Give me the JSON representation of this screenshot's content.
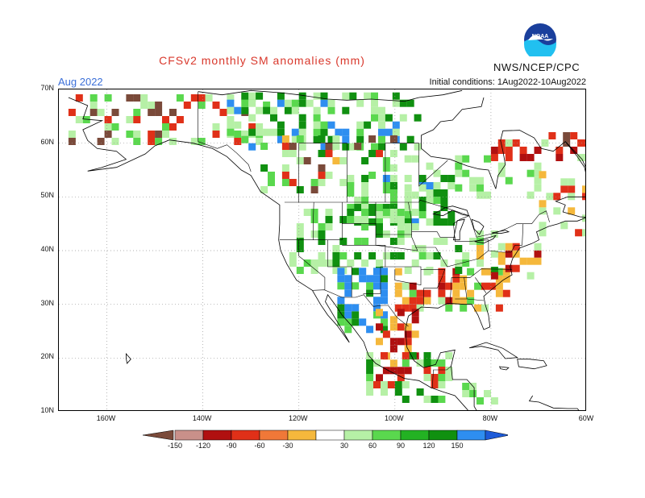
{
  "header": {
    "title": "CFSv2 monthly SM anomalies (mm)",
    "month": "Aug 2022",
    "org": "NWS/NCEP/CPC",
    "initial_conditions": "Initial conditions: 1Aug2022-10Aug2022",
    "logo_text": "NOAA"
  },
  "axes": {
    "lat_labels": [
      "70N",
      "60N",
      "50N",
      "40N",
      "30N",
      "20N",
      "10N"
    ],
    "lon_labels": [
      "160W",
      "140W",
      "120W",
      "100W",
      "80W",
      "60W"
    ],
    "lat_range": [
      10,
      70
    ],
    "lon_range": [
      -170,
      -60
    ],
    "grid": "dotted"
  },
  "colorbar": {
    "labels": [
      "-150",
      "-120",
      "-90",
      "-60",
      "-30",
      "30",
      "60",
      "90",
      "120",
      "150"
    ],
    "colors": [
      "#7a4a3a",
      "#c9908a",
      "#b01010",
      "#e03018",
      "#f07838",
      "#f5b83c",
      "#ffffff",
      "#b6f0a6",
      "#5ad84e",
      "#23b223",
      "#109010",
      "#2e8ef0",
      "#1c5ad8"
    ]
  },
  "anomaly_colors": {
    "dry_strong": "#b01010",
    "dry": "#e03018",
    "dry_mild": "#f5b83c",
    "wet_mild": "#b6f0a6",
    "wet": "#5ad84e",
    "wet_strong": "#109010",
    "very_wet": "#2e8ef0",
    "brown": "#7a4a3a"
  }
}
